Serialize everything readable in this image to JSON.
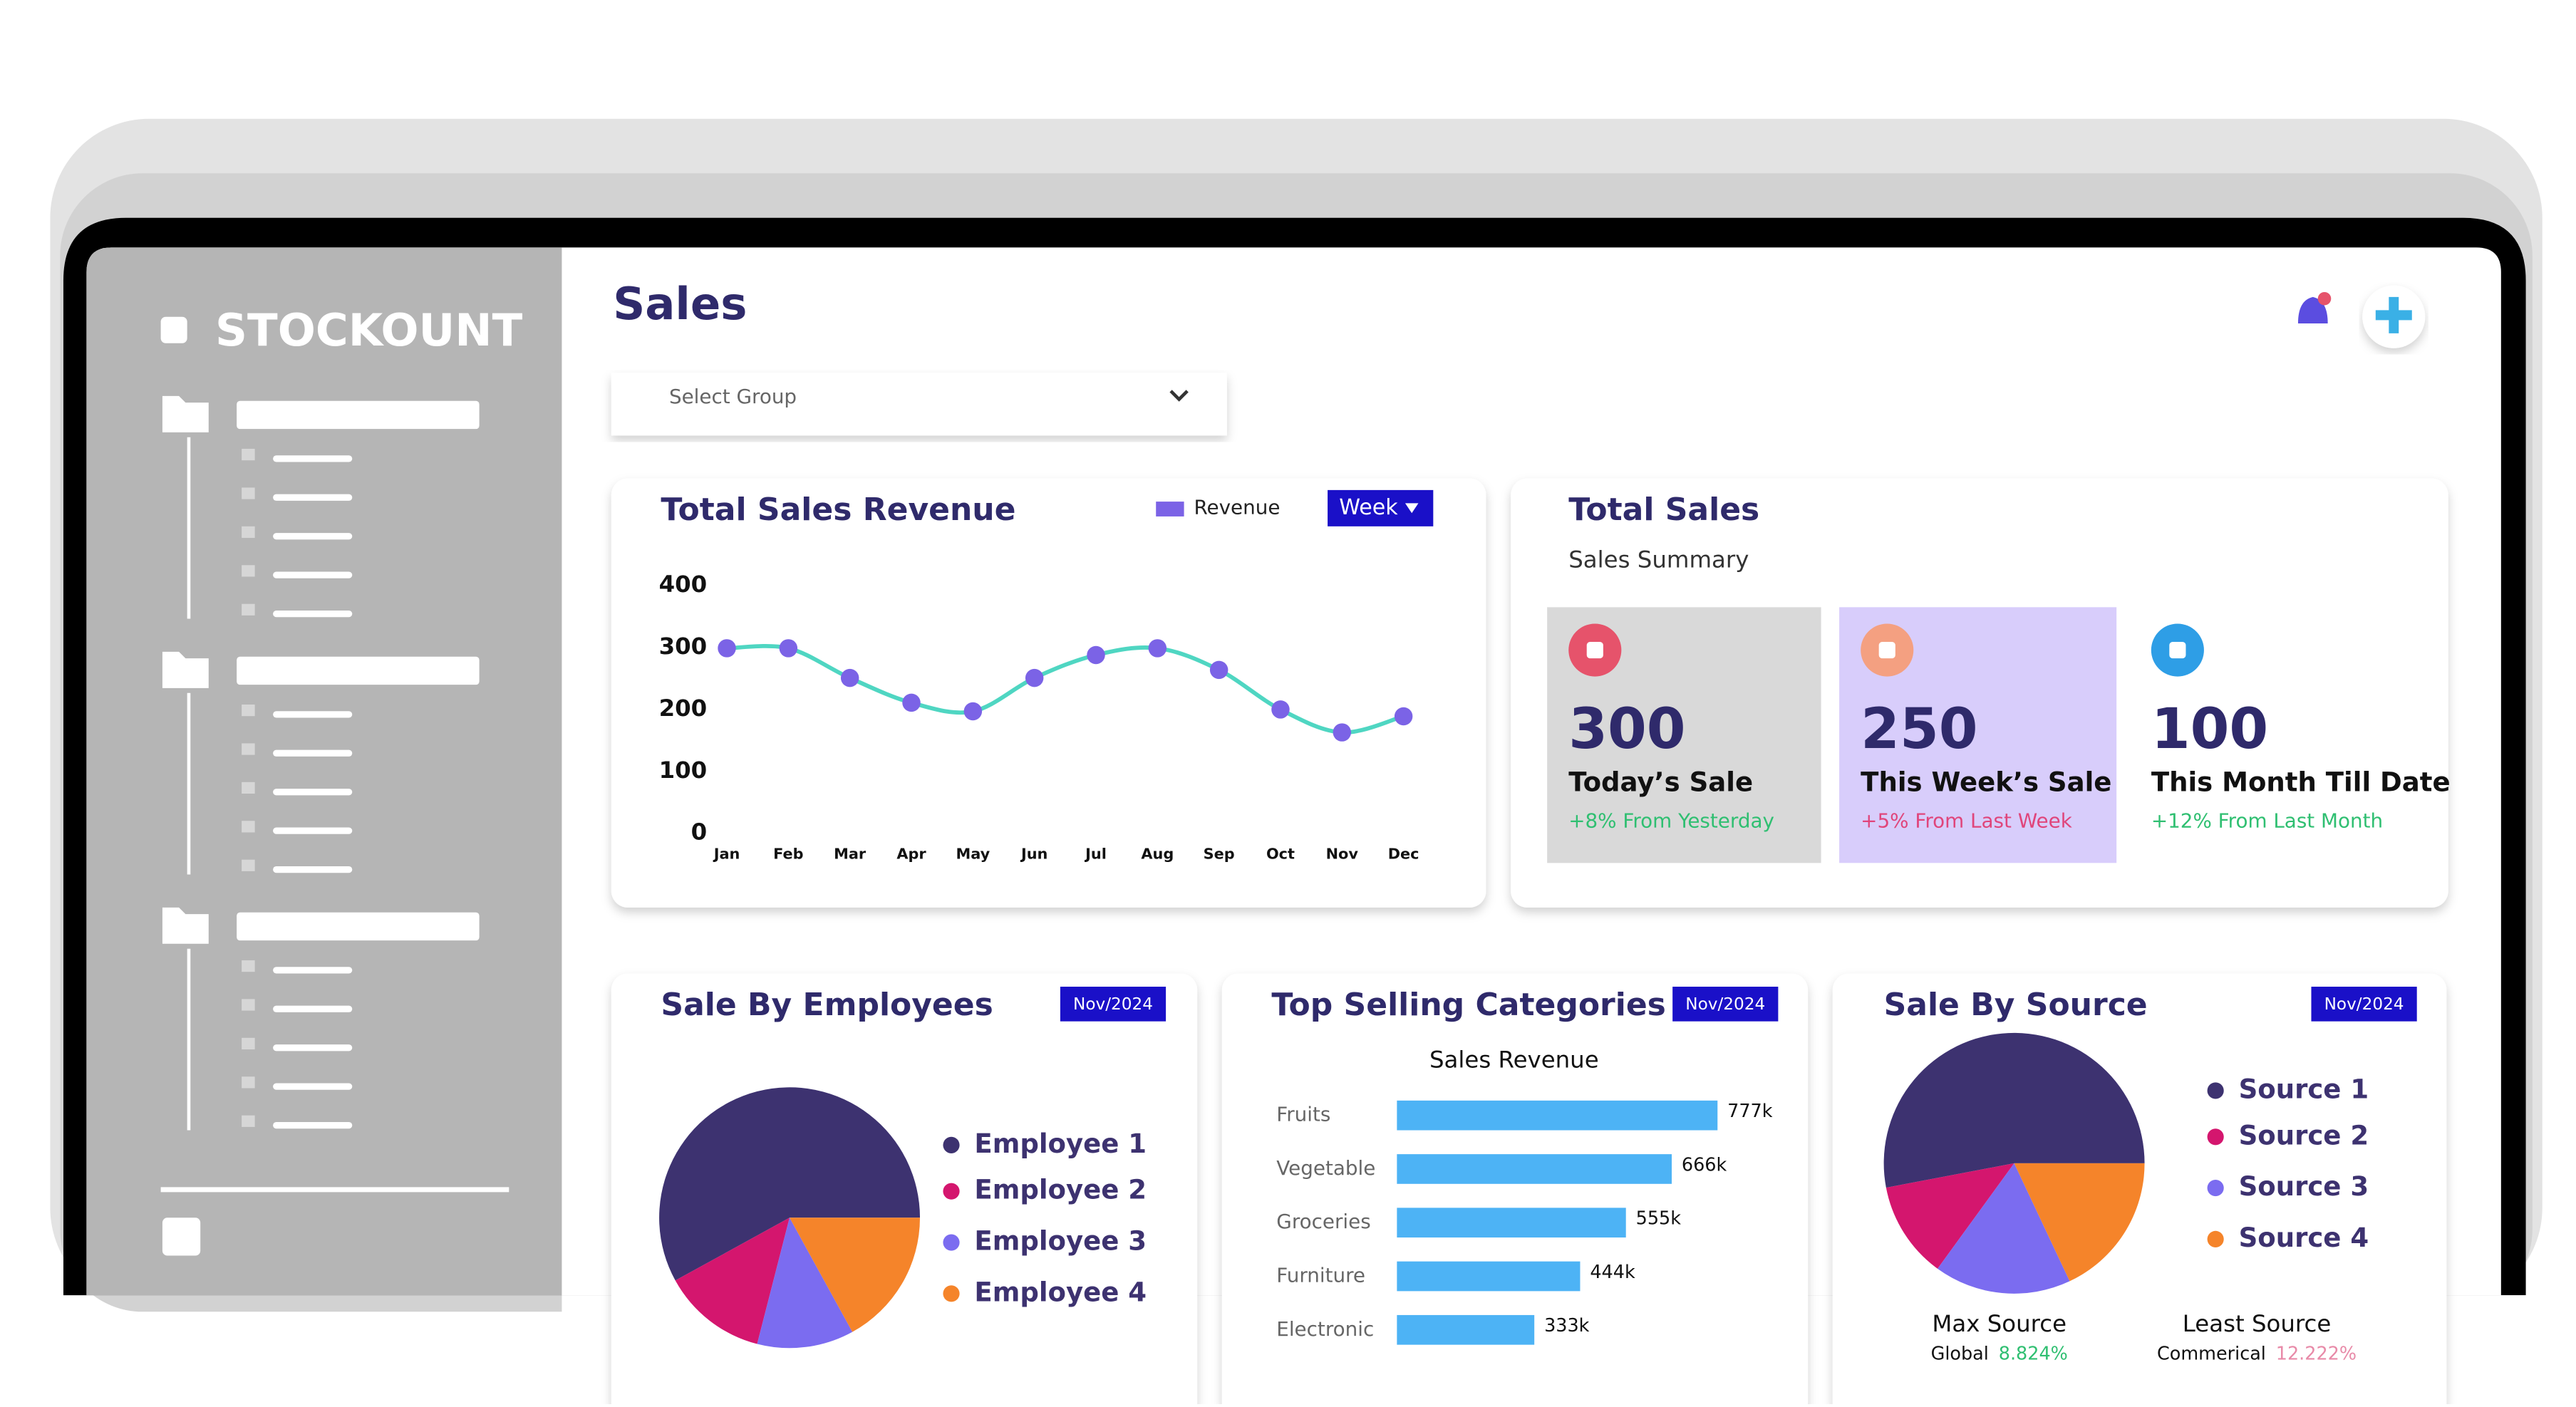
{
  "brand": "STOCKOUNT",
  "header": {
    "title": "Sales"
  },
  "select": {
    "placeholder": "Select Group"
  },
  "stats": {
    "title": "Total Sales",
    "subtitle": "Sales Summary",
    "items": [
      {
        "value": 300,
        "label": "Today’s Sale",
        "change": "+8% From Yesterday",
        "change_color": "#2fbf71",
        "bg": "#d9d9d9",
        "icon_color": "#e6536b"
      },
      {
        "value": 250,
        "label": "This Week’s Sale",
        "change": "+5% From Last Week",
        "change_color": "#e0457b",
        "bg": "#d8cdfb",
        "icon_color": "#f4a081"
      },
      {
        "value": 100,
        "label": "This Month Till Date",
        "change": "+12% From Last Month",
        "change_color": "#2fbf71",
        "bg": "#ffffff",
        "icon_color": "#2e9ee6"
      }
    ]
  },
  "chart_data": [
    {
      "type": "line",
      "title": "Total Sales Revenue",
      "button": "Week",
      "categories": [
        "Jan",
        "Feb",
        "Mar",
        "Apr",
        "May",
        "Jun",
        "Jul",
        "Aug",
        "Sep",
        "Oct",
        "Nov",
        "Dec"
      ],
      "series": [
        {
          "name": "Revenue",
          "color": "#4fd6c2",
          "marker_color": "#7b63e6",
          "values": [
            299,
            299,
            251,
            211,
            197,
            251,
            288,
            299,
            264,
            200,
            163,
            189
          ]
        }
      ],
      "ylim": [
        0,
        400
      ],
      "yticks": [
        0,
        100,
        200,
        300,
        400
      ],
      "grid": false
    },
    {
      "type": "pie",
      "title": "Sale By Employees",
      "badge": "Nov/2024",
      "categories": [
        "Employee 1",
        "Employee 2",
        "Employee 3",
        "Employee 4"
      ],
      "values": [
        58,
        13,
        12,
        17
      ],
      "colors": [
        "#3d3270",
        "#d4166e",
        "#7b6cf0",
        "#f5842a"
      ]
    },
    {
      "type": "bar",
      "title": "Top Selling Categories",
      "subtitle": "Sales Revenue",
      "badge": "Nov/2024",
      "orientation": "horizontal",
      "categories": [
        "Fruits",
        "Vegetable",
        "Groceries",
        "Furniture",
        "Electronic"
      ],
      "values": [
        777000,
        666000,
        555000,
        444000,
        333000
      ],
      "value_labels": [
        "777k",
        "666k",
        "555k",
        "444k",
        "333k"
      ],
      "color": "#4db3f5",
      "xlim": [
        0,
        800000
      ]
    },
    {
      "type": "pie",
      "title": "Sale By Source",
      "badge": "Nov/2024",
      "categories": [
        "Source 1",
        "Source 2",
        "Source 3",
        "Source 4"
      ],
      "values": [
        53,
        12,
        17,
        18
      ],
      "colors": [
        "#3d3270",
        "#d4166e",
        "#7b6cf0",
        "#f5842a"
      ],
      "footer": [
        {
          "title": "Max Source",
          "name": "Global",
          "value": "8.824%",
          "color": "#2fbf71"
        },
        {
          "title": "Least Source",
          "name": "Commerical",
          "value": "12.222%",
          "color": "#e88aa8"
        }
      ]
    }
  ]
}
